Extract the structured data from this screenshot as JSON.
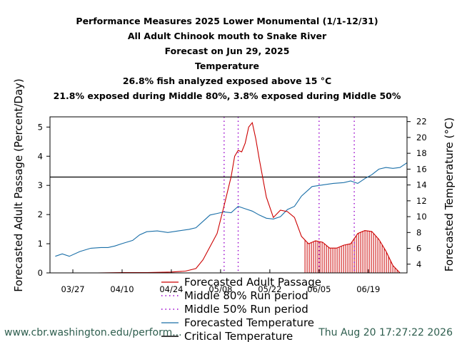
{
  "chart_data": {
    "type": "line",
    "title_lines": [
      "Performance Measures 2025 Lower Monumental (1/1-12/31)",
      "All Adult Chinook mouth to Snake River",
      "Forecast on Jun 29, 2025",
      "Temperature",
      "26.8% fish analyzed exposed above 15 °C",
      "21.8% exposed during Middle 80%, 3.8% exposed during Middle 50%"
    ],
    "ylabel_left": "Forecasted Adult Passage (Percent/Day)",
    "ylabel_right": "Forecasted Temperature (°C)",
    "x_tick_labels": [
      "03/27",
      "04/10",
      "04/24",
      "05/08",
      "05/22",
      "06/05",
      "06/19"
    ],
    "y_left_ticks": [
      "0",
      "1",
      "2",
      "3",
      "4",
      "5"
    ],
    "y_right_ticks": [
      "4",
      "6",
      "8",
      "10",
      "12",
      "14",
      "16",
      "18",
      "20",
      "22"
    ],
    "ylim_left": [
      0,
      5.35
    ],
    "ylim_right": [
      2.9,
      22.6
    ],
    "critical_temperature": 15,
    "middle_80_period": [
      "05/09",
      "06/15"
    ],
    "middle_50_period": [
      "05/13",
      "06/05"
    ],
    "series": [
      {
        "name": "Forecasted Adult Passage",
        "color": "#cc0000",
        "axis": "left",
        "points": [
          [
            "03/27",
            0.0
          ],
          [
            "04/03",
            0.0
          ],
          [
            "04/10",
            0.01
          ],
          [
            "04/17",
            0.01
          ],
          [
            "04/24",
            0.03
          ],
          [
            "04/28",
            0.06
          ],
          [
            "05/01",
            0.15
          ],
          [
            "05/03",
            0.45
          ],
          [
            "05/05",
            0.9
          ],
          [
            "05/07",
            1.35
          ],
          [
            "05/09",
            2.3
          ],
          [
            "05/11",
            3.3
          ],
          [
            "05/12",
            4.0
          ],
          [
            "05/13",
            4.2
          ],
          [
            "05/14",
            4.15
          ],
          [
            "05/15",
            4.45
          ],
          [
            "05/16",
            5.0
          ],
          [
            "05/17",
            5.15
          ],
          [
            "05/18",
            4.6
          ],
          [
            "05/19",
            3.9
          ],
          [
            "05/21",
            2.6
          ],
          [
            "05/23",
            1.9
          ],
          [
            "05/25",
            2.15
          ],
          [
            "05/27",
            2.1
          ],
          [
            "05/29",
            1.9
          ],
          [
            "05/31",
            1.25
          ],
          [
            "06/02",
            1.0
          ],
          [
            "06/04",
            1.1
          ],
          [
            "06/06",
            1.05
          ],
          [
            "06/08",
            0.85
          ],
          [
            "06/10",
            0.85
          ],
          [
            "06/12",
            0.95
          ],
          [
            "06/14",
            1.0
          ],
          [
            "06/16",
            1.35
          ],
          [
            "06/18",
            1.45
          ],
          [
            "06/20",
            1.42
          ],
          [
            "06/22",
            1.15
          ],
          [
            "06/24",
            0.75
          ],
          [
            "06/26",
            0.25
          ],
          [
            "06/28",
            0.0
          ]
        ]
      },
      {
        "name": "Middle 80% Run period",
        "color": "#9900cc",
        "axis": "left"
      },
      {
        "name": "Middle 50% Run period",
        "color": "#9900cc",
        "axis": "left"
      },
      {
        "name": "Forecasted Temperature",
        "color": "#1a6fa8",
        "axis": "right",
        "points": [
          [
            "03/22",
            5.0
          ],
          [
            "03/24",
            5.3
          ],
          [
            "03/26",
            5.0
          ],
          [
            "03/29",
            5.6
          ],
          [
            "04/01",
            6.0
          ],
          [
            "04/04",
            6.1
          ],
          [
            "04/06",
            6.1
          ],
          [
            "04/08",
            6.3
          ],
          [
            "04/10",
            6.6
          ],
          [
            "04/13",
            7.0
          ],
          [
            "04/15",
            7.7
          ],
          [
            "04/17",
            8.1
          ],
          [
            "04/20",
            8.2
          ],
          [
            "04/23",
            8.0
          ],
          [
            "04/26",
            8.2
          ],
          [
            "04/29",
            8.4
          ],
          [
            "05/01",
            8.6
          ],
          [
            "05/03",
            9.4
          ],
          [
            "05/05",
            10.2
          ],
          [
            "05/07",
            10.4
          ],
          [
            "05/09",
            10.6
          ],
          [
            "05/11",
            10.5
          ],
          [
            "05/13",
            11.3
          ],
          [
            "05/15",
            11.0
          ],
          [
            "05/17",
            10.7
          ],
          [
            "05/19",
            10.2
          ],
          [
            "05/21",
            9.8
          ],
          [
            "05/23",
            9.7
          ],
          [
            "05/25",
            10.0
          ],
          [
            "05/27",
            10.9
          ],
          [
            "05/29",
            11.3
          ],
          [
            "05/31",
            12.6
          ],
          [
            "06/03",
            13.8
          ],
          [
            "06/06",
            14.0
          ],
          [
            "06/09",
            14.2
          ],
          [
            "06/12",
            14.3
          ],
          [
            "06/14",
            14.5
          ],
          [
            "06/16",
            14.2
          ],
          [
            "06/18",
            14.8
          ],
          [
            "06/20",
            15.3
          ],
          [
            "06/22",
            16.0
          ],
          [
            "06/24",
            16.2
          ],
          [
            "06/26",
            16.1
          ],
          [
            "06/28",
            16.2
          ],
          [
            "06/30",
            16.8
          ]
        ]
      },
      {
        "name": "Critical Temperature",
        "color": "#000000",
        "axis": "right"
      }
    ],
    "legend_position": "bottom-center",
    "shading": "red vertical hatching under passage curve from 06/01 to 06/28",
    "grid": false
  },
  "footer": {
    "url": "www.cbr.washington.edu/perform...",
    "timestamp": "Thu Aug 20 17:27:22 2026"
  }
}
